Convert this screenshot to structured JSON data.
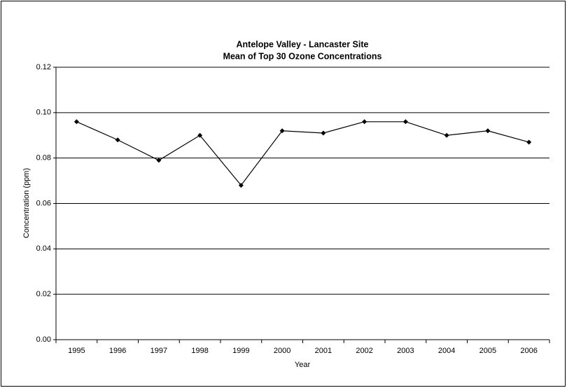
{
  "chart_data": {
    "type": "line",
    "title": "Antelope Valley - Lancaster Site",
    "subtitle": "Mean of Top 30 Ozone Concentrations",
    "x_label": "Year",
    "y_label": "Concentration (ppm)",
    "categories": [
      "1995",
      "1996",
      "1997",
      "1998",
      "1999",
      "2000",
      "2001",
      "2002",
      "2003",
      "2004",
      "2005",
      "2006"
    ],
    "series": [
      {
        "color": "#000000",
        "values": [
          0.096,
          0.088,
          0.079,
          0.09,
          0.068,
          0.092,
          0.091,
          0.096,
          0.096,
          0.09,
          0.092,
          0.087
        ]
      }
    ],
    "ylim": [
      0,
      0.12
    ],
    "yticks": [
      {
        "value": 0,
        "label": "0.00"
      },
      0.02,
      0.04,
      0.06,
      0.08,
      {
        "value": 0.1,
        "label": "0.10"
      },
      0.12
    ],
    "grid": true
  }
}
